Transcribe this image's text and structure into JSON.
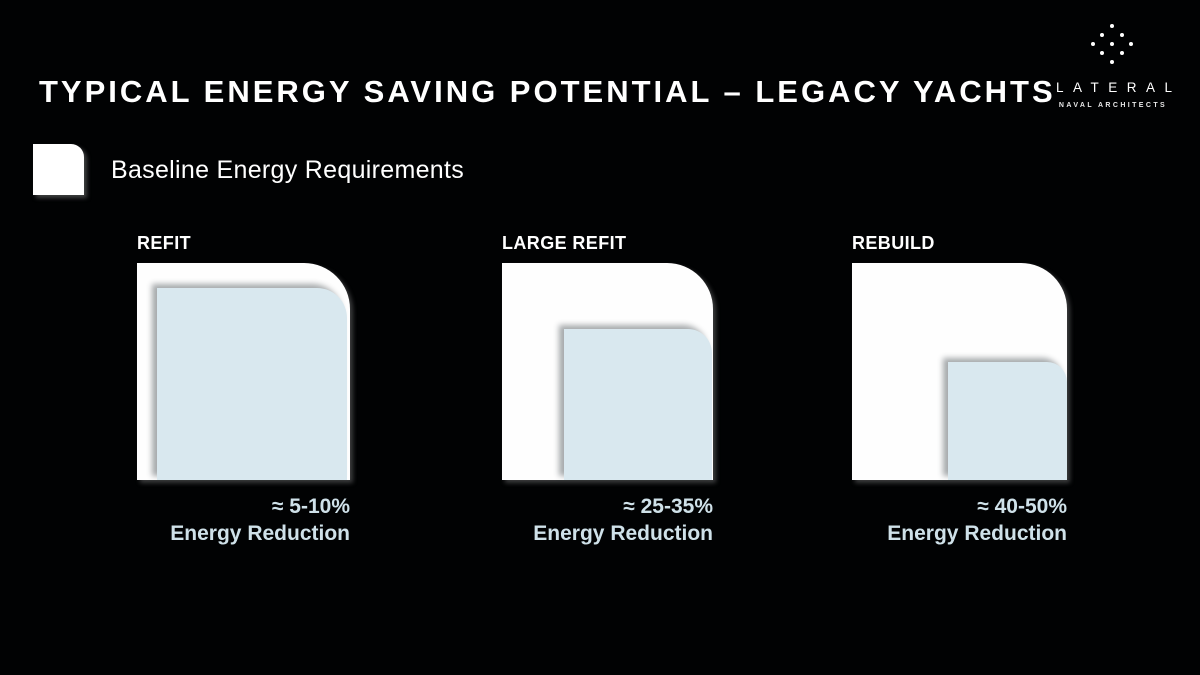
{
  "slide": {
    "title": "TYPICAL ENERGY SAVING POTENTIAL – LEGACY YACHTS"
  },
  "logo": {
    "icon": "dot-diamond-icon",
    "wordmark": "LATERAL",
    "subtitle": "NAVAL ARCHITECTS"
  },
  "legend": {
    "label": "Baseline Energy Requirements",
    "swatch_color": "#ffffff"
  },
  "colors": {
    "background": "#010203",
    "baseline_fill": "#ffffff",
    "reduction_fill": "#d9e8ef",
    "reduction_text": "#cfe1e9"
  },
  "panels": [
    {
      "label": "REFIT",
      "reduction_value": "≈ 5-10%",
      "reduction_label": "Energy Reduction",
      "inner_scale": 0.89
    },
    {
      "label": "LARGE REFIT",
      "reduction_value": "≈ 25-35%",
      "reduction_label": "Energy Reduction",
      "inner_scale": 0.7
    },
    {
      "label": "REBUILD",
      "reduction_value": "≈ 40-50%",
      "reduction_label": "Energy Reduction",
      "inner_scale": 0.55
    }
  ]
}
